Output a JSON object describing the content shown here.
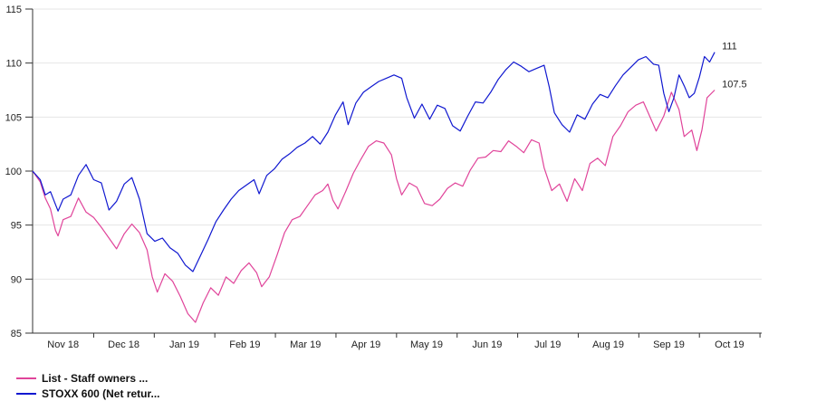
{
  "chart_data": {
    "type": "line",
    "title": "",
    "xlabel": "",
    "ylabel": "",
    "ylim": [
      85,
      115
    ],
    "yticks": [
      85,
      90,
      95,
      100,
      105,
      110,
      115
    ],
    "xticks": [
      "Nov 18",
      "Dec 18",
      "Jan 19",
      "Feb 19",
      "Mar 19",
      "Apr 19",
      "May 19",
      "Jun 19",
      "Jul 19",
      "Aug 19",
      "Sep 19",
      "Oct 19"
    ],
    "grid": "horizontal",
    "legend_position": "bottom-left",
    "series": [
      {
        "name": "List - Staff owners ...",
        "color": "#e0449a",
        "end_label": "107.5",
        "points": [
          [
            0,
            100
          ],
          [
            0.3,
            99
          ],
          [
            0.5,
            97.5
          ],
          [
            0.7,
            96.5
          ],
          [
            0.9,
            94.5
          ],
          [
            1.0,
            94
          ],
          [
            1.2,
            95.5
          ],
          [
            1.5,
            95.8
          ],
          [
            1.8,
            97.5
          ],
          [
            2.1,
            96.2
          ],
          [
            2.4,
            95.7
          ],
          [
            2.7,
            94.8
          ],
          [
            3.0,
            93.8
          ],
          [
            3.3,
            92.8
          ],
          [
            3.6,
            94.2
          ],
          [
            3.9,
            95.1
          ],
          [
            4.2,
            94.3
          ],
          [
            4.5,
            92.7
          ],
          [
            4.7,
            90.2
          ],
          [
            4.9,
            88.8
          ],
          [
            5.2,
            90.5
          ],
          [
            5.5,
            89.8
          ],
          [
            5.8,
            88.4
          ],
          [
            6.1,
            86.8
          ],
          [
            6.4,
            86
          ],
          [
            6.7,
            87.8
          ],
          [
            7.0,
            89.2
          ],
          [
            7.3,
            88.5
          ],
          [
            7.6,
            90.2
          ],
          [
            7.9,
            89.6
          ],
          [
            8.2,
            90.8
          ],
          [
            8.5,
            91.5
          ],
          [
            8.8,
            90.6
          ],
          [
            9.0,
            89.3
          ],
          [
            9.3,
            90.2
          ],
          [
            9.6,
            92.2
          ],
          [
            9.9,
            94.3
          ],
          [
            10.2,
            95.5
          ],
          [
            10.5,
            95.8
          ],
          [
            10.8,
            96.8
          ],
          [
            11.1,
            97.8
          ],
          [
            11.4,
            98.2
          ],
          [
            11.6,
            98.8
          ],
          [
            11.8,
            97.3
          ],
          [
            12.0,
            96.5
          ],
          [
            12.3,
            98.1
          ],
          [
            12.6,
            99.8
          ],
          [
            12.9,
            101.1
          ],
          [
            13.2,
            102.3
          ],
          [
            13.5,
            102.8
          ],
          [
            13.8,
            102.6
          ],
          [
            14.1,
            101.5
          ],
          [
            14.3,
            99.3
          ],
          [
            14.5,
            97.8
          ],
          [
            14.8,
            98.9
          ],
          [
            15.1,
            98.5
          ],
          [
            15.4,
            97
          ],
          [
            15.7,
            96.8
          ],
          [
            16.0,
            97.4
          ],
          [
            16.3,
            98.4
          ],
          [
            16.6,
            98.9
          ],
          [
            16.9,
            98.6
          ],
          [
            17.2,
            100.1
          ],
          [
            17.5,
            101.2
          ],
          [
            17.8,
            101.3
          ],
          [
            18.1,
            101.9
          ],
          [
            18.4,
            101.8
          ],
          [
            18.7,
            102.8
          ],
          [
            19.0,
            102.3
          ],
          [
            19.3,
            101.7
          ],
          [
            19.6,
            102.9
          ],
          [
            19.9,
            102.6
          ],
          [
            20.1,
            100.3
          ],
          [
            20.4,
            98.2
          ],
          [
            20.7,
            98.8
          ],
          [
            21.0,
            97.2
          ],
          [
            21.3,
            99.3
          ],
          [
            21.6,
            98.2
          ],
          [
            21.9,
            100.7
          ],
          [
            22.2,
            101.2
          ],
          [
            22.5,
            100.5
          ],
          [
            22.8,
            103.2
          ],
          [
            23.1,
            104.2
          ],
          [
            23.4,
            105.5
          ],
          [
            23.7,
            106.1
          ],
          [
            24.0,
            106.4
          ],
          [
            24.3,
            104.8
          ],
          [
            24.5,
            103.7
          ],
          [
            24.8,
            105.1
          ],
          [
            25.1,
            107.3
          ],
          [
            25.4,
            105.7
          ],
          [
            25.6,
            103.2
          ],
          [
            25.9,
            103.8
          ],
          [
            26.1,
            101.9
          ],
          [
            26.3,
            103.8
          ],
          [
            26.5,
            106.8
          ],
          [
            26.8,
            107.5
          ]
        ]
      },
      {
        "name": "STOXX 600 (Net retur...",
        "color": "#1018d0",
        "end_label": "111",
        "points": [
          [
            0,
            100
          ],
          [
            0.3,
            99.2
          ],
          [
            0.5,
            97.8
          ],
          [
            0.7,
            98.1
          ],
          [
            1.0,
            96.3
          ],
          [
            1.2,
            97.4
          ],
          [
            1.5,
            97.8
          ],
          [
            1.8,
            99.6
          ],
          [
            2.1,
            100.6
          ],
          [
            2.4,
            99.2
          ],
          [
            2.7,
            98.9
          ],
          [
            3.0,
            96.4
          ],
          [
            3.3,
            97.2
          ],
          [
            3.6,
            98.8
          ],
          [
            3.9,
            99.4
          ],
          [
            4.2,
            97.4
          ],
          [
            4.5,
            94.2
          ],
          [
            4.8,
            93.5
          ],
          [
            5.1,
            93.8
          ],
          [
            5.4,
            92.9
          ],
          [
            5.7,
            92.4
          ],
          [
            6.0,
            91.3
          ],
          [
            6.3,
            90.7
          ],
          [
            6.6,
            92.2
          ],
          [
            6.9,
            93.7
          ],
          [
            7.2,
            95.3
          ],
          [
            7.5,
            96.4
          ],
          [
            7.8,
            97.4
          ],
          [
            8.1,
            98.2
          ],
          [
            8.4,
            98.7
          ],
          [
            8.7,
            99.2
          ],
          [
            8.9,
            97.9
          ],
          [
            9.2,
            99.6
          ],
          [
            9.5,
            100.2
          ],
          [
            9.8,
            101.1
          ],
          [
            10.1,
            101.6
          ],
          [
            10.4,
            102.2
          ],
          [
            10.7,
            102.6
          ],
          [
            11.0,
            103.2
          ],
          [
            11.3,
            102.5
          ],
          [
            11.6,
            103.6
          ],
          [
            11.9,
            105.2
          ],
          [
            12.2,
            106.4
          ],
          [
            12.4,
            104.3
          ],
          [
            12.7,
            106.3
          ],
          [
            13.0,
            107.3
          ],
          [
            13.3,
            107.8
          ],
          [
            13.6,
            108.3
          ],
          [
            13.9,
            108.6
          ],
          [
            14.2,
            108.9
          ],
          [
            14.5,
            108.6
          ],
          [
            14.7,
            106.8
          ],
          [
            15.0,
            104.9
          ],
          [
            15.3,
            106.2
          ],
          [
            15.6,
            104.8
          ],
          [
            15.9,
            106.1
          ],
          [
            16.2,
            105.8
          ],
          [
            16.5,
            104.2
          ],
          [
            16.8,
            103.7
          ],
          [
            17.1,
            105.1
          ],
          [
            17.4,
            106.4
          ],
          [
            17.7,
            106.3
          ],
          [
            18.0,
            107.3
          ],
          [
            18.3,
            108.5
          ],
          [
            18.6,
            109.4
          ],
          [
            18.9,
            110.1
          ],
          [
            19.2,
            109.7
          ],
          [
            19.5,
            109.2
          ],
          [
            19.8,
            109.5
          ],
          [
            20.1,
            109.8
          ],
          [
            20.3,
            107.8
          ],
          [
            20.5,
            105.4
          ],
          [
            20.8,
            104.3
          ],
          [
            21.1,
            103.6
          ],
          [
            21.4,
            105.2
          ],
          [
            21.7,
            104.8
          ],
          [
            22.0,
            106.2
          ],
          [
            22.3,
            107.1
          ],
          [
            22.6,
            106.8
          ],
          [
            22.9,
            107.9
          ],
          [
            23.2,
            108.9
          ],
          [
            23.5,
            109.6
          ],
          [
            23.8,
            110.3
          ],
          [
            24.1,
            110.6
          ],
          [
            24.4,
            109.9
          ],
          [
            24.6,
            109.8
          ],
          [
            24.8,
            107.2
          ],
          [
            25.0,
            105.5
          ],
          [
            25.2,
            106.8
          ],
          [
            25.4,
            108.9
          ],
          [
            25.6,
            107.9
          ],
          [
            25.8,
            106.8
          ],
          [
            26.0,
            107.2
          ],
          [
            26.2,
            108.7
          ],
          [
            26.4,
            110.6
          ],
          [
            26.6,
            110.1
          ],
          [
            26.8,
            111
          ]
        ]
      }
    ]
  }
}
